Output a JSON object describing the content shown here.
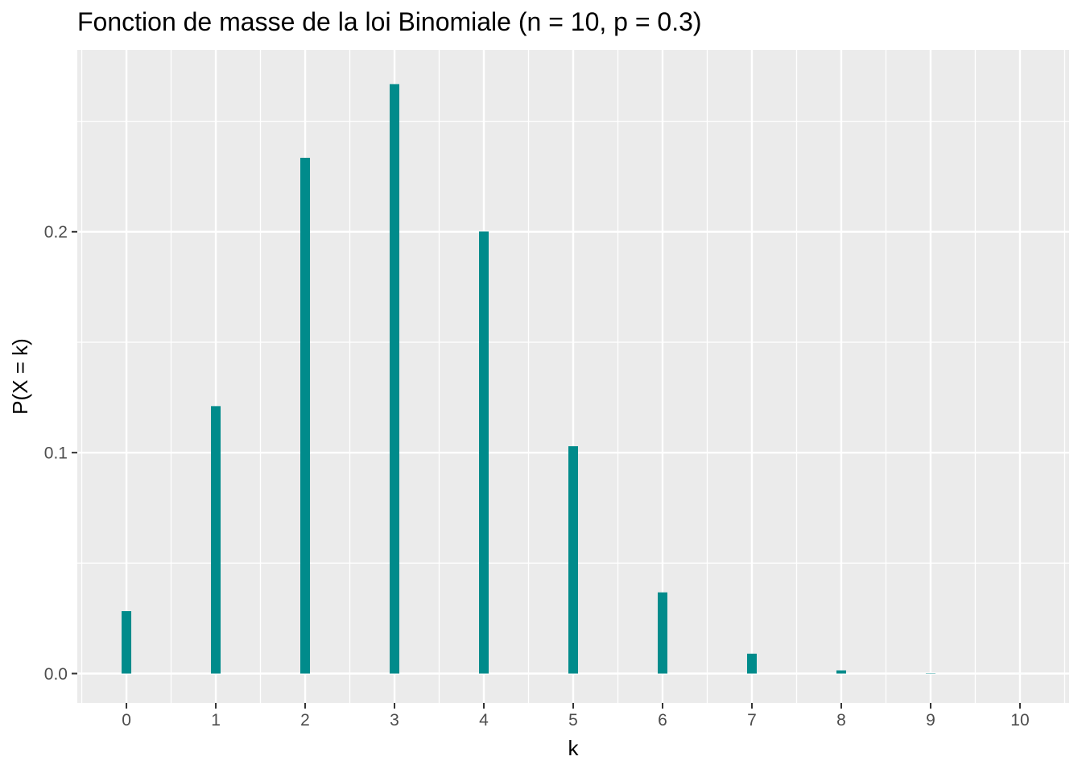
{
  "chart_data": {
    "type": "bar",
    "title": "Fonction de masse de la loi Binomiale (n = 10, p = 0.3)",
    "xlabel": "k",
    "ylabel": "P(X = k)",
    "categories": [
      0,
      1,
      2,
      3,
      4,
      5,
      6,
      7,
      8,
      9,
      10
    ],
    "values": [
      0.028248,
      0.121061,
      0.233474,
      0.266828,
      0.200121,
      0.102919,
      0.036757,
      0.009002,
      0.001447,
      0.000138,
      6e-06
    ],
    "distribution": {
      "n": 10,
      "p": 0.3
    },
    "xlim": [
      -0.55,
      10.55
    ],
    "ylim": [
      -0.0133,
      0.2823
    ],
    "x_major_ticks": [
      0,
      1,
      2,
      3,
      4,
      5,
      6,
      7,
      8,
      9,
      10
    ],
    "x_tick_labels": [
      "0",
      "1",
      "2",
      "3",
      "4",
      "5",
      "6",
      "7",
      "8",
      "9",
      "10"
    ],
    "x_minor_ticks": [
      -0.5,
      0.5,
      1.5,
      2.5,
      3.5,
      4.5,
      5.5,
      6.5,
      7.5,
      8.5,
      9.5,
      10.5
    ],
    "y_major_ticks": [
      0,
      0.1,
      0.2
    ],
    "y_tick_labels": [
      "0.0",
      "0.1",
      "0.2"
    ],
    "y_minor_ticks": [
      0.05,
      0.15,
      0.25
    ],
    "grid": true,
    "legend_position": "none",
    "colors": {
      "bar": "#008B8B",
      "panel_background": "#EBEBEB",
      "gridline": "#FFFFFF",
      "tick_label": "#4D4D4D",
      "tick_mark": "#333333",
      "text": "#000000",
      "page_background": "#FFFFFF"
    }
  }
}
